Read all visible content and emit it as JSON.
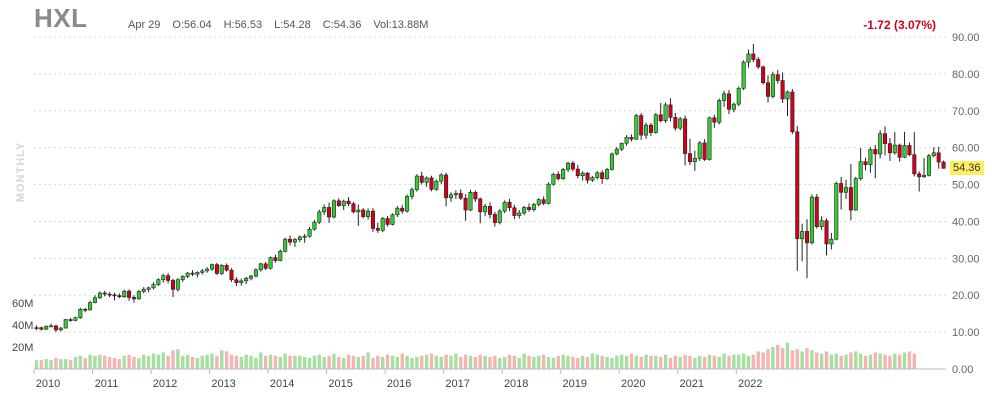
{
  "header": {
    "ticker": "HXL",
    "date": "Apr 29",
    "open": "O:56.04",
    "high": "H:56.53",
    "low": "L:54.28",
    "close": "C:54.36",
    "volume": "Vol:13.88M",
    "change": "-1.72 (3.07%)",
    "period": "MONTHLY",
    "last_price": "54.36"
  },
  "colors": {
    "up": "#32cd32",
    "down": "#d0021b",
    "vol_up": "#a6e0a0",
    "vol_down": "#f5b3b3",
    "change_text": "#d0021b",
    "last_badge": "#ffef5e"
  },
  "chart_data": {
    "type": "candlestick",
    "title": "HXL",
    "period": "monthly",
    "price_axis": {
      "ticks": [
        "90.00",
        "80.00",
        "70.00",
        "60.00",
        "50.00",
        "40.00",
        "30.00",
        "20.00",
        "10.00",
        "0.00"
      ],
      "ylim": [
        0,
        90
      ]
    },
    "volume_axis": {
      "ticks": [
        "60M",
        "40M",
        "20M"
      ]
    },
    "x_labels": [
      "2010",
      "2011",
      "2012",
      "2013",
      "2014",
      "2015",
      "2016",
      "2017",
      "2018",
      "2019",
      "2020",
      "2021",
      "2022"
    ],
    "first_year": 2010,
    "first_month": 1,
    "ohlc_series": [
      [
        11.0,
        11.8,
        10.5,
        11.2
      ],
      [
        11.2,
        11.5,
        10.4,
        10.8
      ],
      [
        10.8,
        11.8,
        10.6,
        11.6
      ],
      [
        11.6,
        12.3,
        11.3,
        11.7
      ],
      [
        11.7,
        12.0,
        10.0,
        10.6
      ],
      [
        10.6,
        11.4,
        10.2,
        11.1
      ],
      [
        11.1,
        13.6,
        11.0,
        13.4
      ],
      [
        13.4,
        13.8,
        12.8,
        13.2
      ],
      [
        13.2,
        14.2,
        12.9,
        13.9
      ],
      [
        13.9,
        16.6,
        13.6,
        16.2
      ],
      [
        16.2,
        16.6,
        15.4,
        16.0
      ],
      [
        16.0,
        18.5,
        15.9,
        18.0
      ],
      [
        18.0,
        20.0,
        17.8,
        19.3
      ],
      [
        19.3,
        21.0,
        19.0,
        20.6
      ],
      [
        20.6,
        21.2,
        19.7,
        20.3
      ],
      [
        20.3,
        20.8,
        19.5,
        20.1
      ],
      [
        20.1,
        20.7,
        18.6,
        19.9
      ],
      [
        19.9,
        20.5,
        19.2,
        19.6
      ],
      [
        19.6,
        21.5,
        19.3,
        21.1
      ],
      [
        21.1,
        21.6,
        18.5,
        19.4
      ],
      [
        19.4,
        20.0,
        18.0,
        19.0
      ],
      [
        19.0,
        21.4,
        18.8,
        21.0
      ],
      [
        21.0,
        22.2,
        20.5,
        21.6
      ],
      [
        21.6,
        22.3,
        20.8,
        22.0
      ],
      [
        22.0,
        23.5,
        21.6,
        22.9
      ],
      [
        22.9,
        24.6,
        22.5,
        24.2
      ],
      [
        24.2,
        25.8,
        23.4,
        25.3
      ],
      [
        25.3,
        26.0,
        23.2,
        24.0
      ],
      [
        24.0,
        24.5,
        19.5,
        21.6
      ],
      [
        21.6,
        24.6,
        21.0,
        24.2
      ],
      [
        24.2,
        25.4,
        23.6,
        25.1
      ],
      [
        25.1,
        26.3,
        24.6,
        26.0
      ],
      [
        26.0,
        26.8,
        25.2,
        25.7
      ],
      [
        25.7,
        26.5,
        24.8,
        26.2
      ],
      [
        26.2,
        27.1,
        25.6,
        26.6
      ],
      [
        26.6,
        27.6,
        26.1,
        27.1
      ],
      [
        27.1,
        28.6,
        26.6,
        28.3
      ],
      [
        28.3,
        28.8,
        25.5,
        25.9
      ],
      [
        25.9,
        28.4,
        25.5,
        28.1
      ],
      [
        28.1,
        28.6,
        26.4,
        26.8
      ],
      [
        26.8,
        27.3,
        23.6,
        24.2
      ],
      [
        24.2,
        24.9,
        22.5,
        23.4
      ],
      [
        23.4,
        24.5,
        22.6,
        23.9
      ],
      [
        23.9,
        25.0,
        23.0,
        24.6
      ],
      [
        24.6,
        25.5,
        24.0,
        25.2
      ],
      [
        25.2,
        27.3,
        24.8,
        26.9
      ],
      [
        26.9,
        28.8,
        26.4,
        28.5
      ],
      [
        28.5,
        29.0,
        26.8,
        27.3
      ],
      [
        27.3,
        30.5,
        27.0,
        30.2
      ],
      [
        30.2,
        31.0,
        28.8,
        29.4
      ],
      [
        29.4,
        32.4,
        29.2,
        31.9
      ],
      [
        31.9,
        35.6,
        31.6,
        35.2
      ],
      [
        35.2,
        36.2,
        33.5,
        34.4
      ],
      [
        34.4,
        35.5,
        33.1,
        35.1
      ],
      [
        35.1,
        36.2,
        34.4,
        35.8
      ],
      [
        35.8,
        36.6,
        34.2,
        36.0
      ],
      [
        36.0,
        38.5,
        35.6,
        37.9
      ],
      [
        37.9,
        40.4,
        37.5,
        39.8
      ],
      [
        39.8,
        43.2,
        39.3,
        42.6
      ],
      [
        42.6,
        44.6,
        41.8,
        43.8
      ],
      [
        43.8,
        45.1,
        39.6,
        41.2
      ],
      [
        41.2,
        46.0,
        40.8,
        45.6
      ],
      [
        45.6,
        46.3,
        43.9,
        44.3
      ],
      [
        44.3,
        45.9,
        43.1,
        45.5
      ],
      [
        45.5,
        46.6,
        44.2,
        44.8
      ],
      [
        44.8,
        45.3,
        42.2,
        42.6
      ],
      [
        42.6,
        44.6,
        38.8,
        43.1
      ],
      [
        43.1,
        43.6,
        40.8,
        41.3
      ],
      [
        41.3,
        43.5,
        40.5,
        42.8
      ],
      [
        42.8,
        43.6,
        37.2,
        38.1
      ],
      [
        38.1,
        39.7,
        36.9,
        37.6
      ],
      [
        37.6,
        41.2,
        37.1,
        40.8
      ],
      [
        40.8,
        41.5,
        38.6,
        39.2
      ],
      [
        39.2,
        42.2,
        38.9,
        41.8
      ],
      [
        41.8,
        44.2,
        41.2,
        43.6
      ],
      [
        43.6,
        44.5,
        42.1,
        42.8
      ],
      [
        42.8,
        47.3,
        42.4,
        46.8
      ],
      [
        46.8,
        49.2,
        46.0,
        48.6
      ],
      [
        48.6,
        52.8,
        48.1,
        52.3
      ],
      [
        52.3,
        53.5,
        50.0,
        50.6
      ],
      [
        50.6,
        52.2,
        49.4,
        51.8
      ],
      [
        51.8,
        52.4,
        48.2,
        48.7
      ],
      [
        48.7,
        51.4,
        48.3,
        50.9
      ],
      [
        50.9,
        53.1,
        50.1,
        52.6
      ],
      [
        52.6,
        53.2,
        44.1,
        46.4
      ],
      [
        46.4,
        47.9,
        45.3,
        47.2
      ],
      [
        47.2,
        48.4,
        46.1,
        47.6
      ],
      [
        47.6,
        48.7,
        45.8,
        46.3
      ],
      [
        46.3,
        47.4,
        40.2,
        43.1
      ],
      [
        43.1,
        48.6,
        42.8,
        47.9
      ],
      [
        47.9,
        48.4,
        45.3,
        46.1
      ],
      [
        46.1,
        46.5,
        39.5,
        42.6
      ],
      [
        42.6,
        44.8,
        41.4,
        44.1
      ],
      [
        44.1,
        45.2,
        40.8,
        41.9
      ],
      [
        41.9,
        42.6,
        38.6,
        39.7
      ],
      [
        39.7,
        43.4,
        39.2,
        42.8
      ],
      [
        42.8,
        45.7,
        42.3,
        45.2
      ],
      [
        45.2,
        46.1,
        42.8,
        43.7
      ],
      [
        43.7,
        44.5,
        40.6,
        41.6
      ],
      [
        41.6,
        43.1,
        40.8,
        42.3
      ],
      [
        42.3,
        44.2,
        41.7,
        43.8
      ],
      [
        43.8,
        44.9,
        42.6,
        43.2
      ],
      [
        43.2,
        45.1,
        42.7,
        44.6
      ],
      [
        44.6,
        46.3,
        44.1,
        45.9
      ],
      [
        45.9,
        46.8,
        44.4,
        44.9
      ],
      [
        44.9,
        50.6,
        44.6,
        50.1
      ],
      [
        50.1,
        53.2,
        49.7,
        52.8
      ],
      [
        52.8,
        53.6,
        51.1,
        51.6
      ],
      [
        51.6,
        54.5,
        51.2,
        54.1
      ],
      [
        54.1,
        56.2,
        53.4,
        55.8
      ],
      [
        55.8,
        56.4,
        53.6,
        54.2
      ],
      [
        54.2,
        55.3,
        51.7,
        52.4
      ],
      [
        52.4,
        53.6,
        51.1,
        53.1
      ],
      [
        53.1,
        53.4,
        50.3,
        51.2
      ],
      [
        51.2,
        52.3,
        50.7,
        51.9
      ],
      [
        51.9,
        53.6,
        51.4,
        53.2
      ],
      [
        53.2,
        53.9,
        50.2,
        51.6
      ],
      [
        51.6,
        54.5,
        51.3,
        54.1
      ],
      [
        54.1,
        58.7,
        53.8,
        58.3
      ],
      [
        58.3,
        60.2,
        57.9,
        59.6
      ],
      [
        59.6,
        61.4,
        59.1,
        61.2
      ],
      [
        61.2,
        63.4,
        60.5,
        62.8
      ],
      [
        62.8,
        63.6,
        61.7,
        62.3
      ],
      [
        62.3,
        69.2,
        62.1,
        68.7
      ],
      [
        68.7,
        69.4,
        62.1,
        63.4
      ],
      [
        63.4,
        66.8,
        62.4,
        66.1
      ],
      [
        66.1,
        66.7,
        63.2,
        64.1
      ],
      [
        64.1,
        69.4,
        63.8,
        68.9
      ],
      [
        68.9,
        72.1,
        66.8,
        67.3
      ],
      [
        67.3,
        72.2,
        66.7,
        71.6
      ],
      [
        71.6,
        73.4,
        67.1,
        68.2
      ],
      [
        68.2,
        69.4,
        64.6,
        65.3
      ],
      [
        65.3,
        68.3,
        64.7,
        67.8
      ],
      [
        67.8,
        68.7,
        55.2,
        58.4
      ],
      [
        58.4,
        62.4,
        55.3,
        56.2
      ],
      [
        56.2,
        59.2,
        53.7,
        57.1
      ],
      [
        57.1,
        61.8,
        56.4,
        61.3
      ],
      [
        61.3,
        62.3,
        56.4,
        56.8
      ],
      [
        56.8,
        68.4,
        56.5,
        68.1
      ],
      [
        68.1,
        68.9,
        65.4,
        66.9
      ],
      [
        66.9,
        73.3,
        66.3,
        72.8
      ],
      [
        72.8,
        75.4,
        71.1,
        74.6
      ],
      [
        74.6,
        75.6,
        69.1,
        70.4
      ],
      [
        70.4,
        72.2,
        69.6,
        71.8
      ],
      [
        71.8,
        76.6,
        71.3,
        76.1
      ],
      [
        76.1,
        83.7,
        75.6,
        83.2
      ],
      [
        83.2,
        86.6,
        81.7,
        85.4
      ],
      [
        85.4,
        88.1,
        83.2,
        83.9
      ],
      [
        83.9,
        84.6,
        81.3,
        81.9
      ],
      [
        81.9,
        82.2,
        77.1,
        77.6
      ],
      [
        77.6,
        79.6,
        72.3,
        73.9
      ],
      [
        73.9,
        80.6,
        73.4,
        79.8
      ],
      [
        79.8,
        81.1,
        77.4,
        78.2
      ],
      [
        78.2,
        80.4,
        72.1,
        73.2
      ],
      [
        73.2,
        75.5,
        68.6,
        75.1
      ],
      [
        75.1,
        75.9,
        63.7,
        64.3
      ],
      [
        64.3,
        65.9,
        26.6,
        35.3
      ],
      [
        35.3,
        39.4,
        29.2,
        37.3
      ],
      [
        37.3,
        40.6,
        24.6,
        34.2
      ],
      [
        34.2,
        47.3,
        33.8,
        46.6
      ],
      [
        46.6,
        47.4,
        38.1,
        38.6
      ],
      [
        38.6,
        41.4,
        37.7,
        40.2
      ],
      [
        40.2,
        40.8,
        30.8,
        33.9
      ],
      [
        33.9,
        36.9,
        32.4,
        35.2
      ],
      [
        35.2,
        50.8,
        34.9,
        50.3
      ],
      [
        50.3,
        52.1,
        43.2,
        47.9
      ],
      [
        47.9,
        51.3,
        46.1,
        49.2
      ],
      [
        49.2,
        55.6,
        40.3,
        43.1
      ],
      [
        43.1,
        52.1,
        42.9,
        51.6
      ],
      [
        51.6,
        59.9,
        51.1,
        56.2
      ],
      [
        56.2,
        57.3,
        53.8,
        55.4
      ],
      [
        55.4,
        60.1,
        53.2,
        59.5
      ],
      [
        59.5,
        60.7,
        51.7,
        58.3
      ],
      [
        58.3,
        64.7,
        57.1,
        63.8
      ],
      [
        63.8,
        65.8,
        57.9,
        61.1
      ],
      [
        61.1,
        62.6,
        56.4,
        58.6
      ],
      [
        58.6,
        64.2,
        58.1,
        60.7
      ],
      [
        60.7,
        61.1,
        56.2,
        57.4
      ],
      [
        57.4,
        64.3,
        57.2,
        60.6
      ],
      [
        60.6,
        61.4,
        57.7,
        58.1
      ],
      [
        58.1,
        64.2,
        52.2,
        52.9
      ],
      [
        52.9,
        53.6,
        48.1,
        52.1
      ],
      [
        52.1,
        57.2,
        51.8,
        52.5
      ],
      [
        52.5,
        58.3,
        52.2,
        57.8
      ],
      [
        57.8,
        60.1,
        57.4,
        58.6
      ],
      [
        58.6,
        60.2,
        54.3,
        56.1
      ],
      [
        56.1,
        56.5,
        54.3,
        54.4
      ]
    ],
    "volume_series_m": [
      8,
      8,
      9,
      8,
      10,
      9,
      9,
      8,
      11,
      12,
      10,
      13,
      12,
      13,
      12,
      11,
      10,
      9,
      12,
      13,
      11,
      10,
      13,
      12,
      14,
      13,
      15,
      12,
      17,
      18,
      12,
      13,
      11,
      10,
      12,
      13,
      14,
      12,
      17,
      16,
      13,
      12,
      11,
      13,
      12,
      10,
      15,
      12,
      13,
      12,
      11,
      14,
      12,
      12,
      12,
      11,
      10,
      12,
      13,
      11,
      12,
      14,
      11,
      10,
      13,
      12,
      11,
      12,
      15,
      10,
      12,
      11,
      13,
      12,
      11,
      14,
      12,
      10,
      11,
      12,
      13,
      14,
      12,
      11,
      13,
      12,
      14,
      11,
      13,
      12,
      11,
      13,
      12,
      11,
      12,
      10,
      11,
      13,
      12,
      10,
      14,
      12,
      11,
      12,
      13,
      11,
      10,
      12,
      13,
      12,
      11,
      10,
      12,
      11,
      14,
      13,
      12,
      11,
      10,
      12,
      13,
      12,
      14,
      12,
      11,
      13,
      12,
      12,
      11,
      13,
      10,
      12,
      11,
      13,
      12,
      10,
      12,
      11,
      13,
      12,
      11,
      14,
      12,
      13,
      13,
      14,
      12,
      13,
      16,
      15,
      18,
      20,
      22,
      19,
      24,
      17,
      18,
      16,
      19,
      17,
      15,
      14,
      16,
      13,
      14,
      12,
      13,
      15,
      16,
      14,
      12,
      13,
      15,
      14,
      13,
      12,
      14,
      13,
      15,
      16,
      14
    ]
  }
}
